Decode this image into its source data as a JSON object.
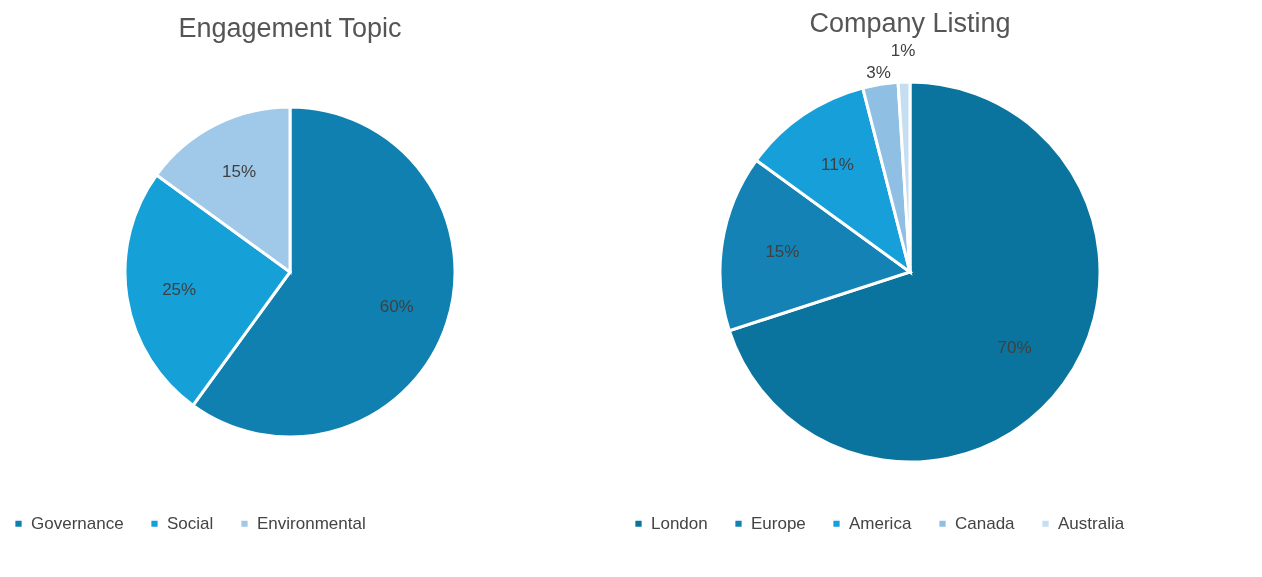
{
  "chart_data": [
    {
      "type": "pie",
      "title": "Engagement Topic",
      "categories": [
        "Governance",
        "Social",
        "Environmental"
      ],
      "values": [
        60,
        25,
        15
      ],
      "colors": [
        "#1080b0",
        "#15a0d8",
        "#a0c8e8"
      ],
      "value_labels": [
        "60%",
        "25%",
        "15%"
      ],
      "legend": "bottom"
    },
    {
      "type": "pie",
      "title": "Company Listing",
      "categories": [
        "London",
        "Europe",
        "America",
        "Canada",
        "Australia"
      ],
      "values": [
        70,
        15,
        11,
        3,
        1
      ],
      "colors": [
        "#0a749e",
        "#1482b4",
        "#169fd8",
        "#8fc0e4",
        "#c6def2"
      ],
      "value_labels": [
        "70%",
        "15%",
        "11%",
        "3%",
        "1%"
      ],
      "legend": "bottom"
    }
  ]
}
